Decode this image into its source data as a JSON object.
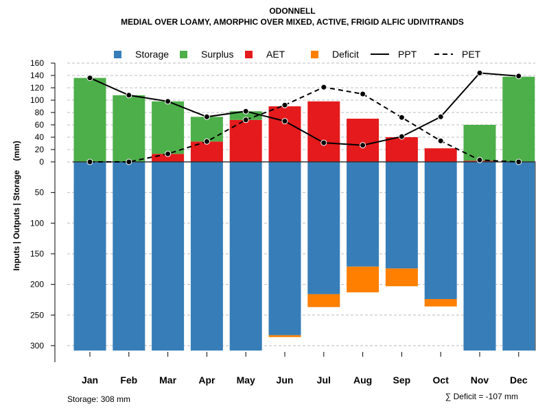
{
  "chart_data": {
    "type": "bar",
    "title": "ODONNELL",
    "subtitle": "MEDIAL OVER LOAMY, AMORPHIC OVER MIXED, ACTIVE, FRIGID ALFIC UDIVITRANDS",
    "ylabel": "Inputs | Outputs | Storage    (mm)",
    "categories": [
      "Jan",
      "Feb",
      "Mar",
      "Apr",
      "May",
      "Jun",
      "Jul",
      "Aug",
      "Sep",
      "Oct",
      "Nov",
      "Dec"
    ],
    "y_ticks_upper": [
      0,
      20,
      40,
      60,
      80,
      100,
      120,
      140,
      160
    ],
    "y_ticks_lower": [
      50,
      100,
      150,
      200,
      250,
      300
    ],
    "ylim_upper": [
      0,
      160
    ],
    "ylim_lower": [
      0,
      310
    ],
    "grid": true,
    "legend_position": "top",
    "legend": [
      {
        "label": "Storage",
        "type": "box",
        "color": "#377EB8"
      },
      {
        "label": "Surplus",
        "type": "box",
        "color": "#4DAF4A"
      },
      {
        "label": "AET",
        "type": "box",
        "color": "#E41A1C"
      },
      {
        "label": "Deficit",
        "type": "box",
        "color": "#FF7F00"
      },
      {
        "label": "PPT",
        "type": "solid-line",
        "color": "#000000"
      },
      {
        "label": "PET",
        "type": "dashed-line",
        "color": "#000000"
      }
    ],
    "series": [
      {
        "name": "AET",
        "values": [
          0,
          0,
          13,
          33,
          68,
          90,
          98,
          70,
          40,
          22,
          2,
          0
        ]
      },
      {
        "name": "Surplus",
        "values": [
          136,
          108,
          85,
          40,
          14,
          0,
          0,
          0,
          0,
          0,
          58,
          138
        ]
      },
      {
        "name": "Storage",
        "values": [
          308,
          308,
          308,
          308,
          308,
          283,
          216,
          171,
          174,
          224,
          308,
          308
        ]
      },
      {
        "name": "Deficit",
        "values": [
          0,
          0,
          0,
          0,
          0,
          3,
          21,
          42,
          29,
          12,
          0,
          0
        ]
      },
      {
        "name": "PPT",
        "values": [
          136,
          108,
          98,
          73,
          82,
          66,
          31,
          27,
          41,
          73,
          144,
          139
        ]
      },
      {
        "name": "PET",
        "values": [
          0,
          0,
          13,
          33,
          68,
          92,
          121,
          110,
          72,
          34,
          3,
          0
        ]
      }
    ],
    "annotations": {
      "storage": "Storage: 308 mm",
      "deficit": "∑ Deficit = -107 mm"
    }
  }
}
